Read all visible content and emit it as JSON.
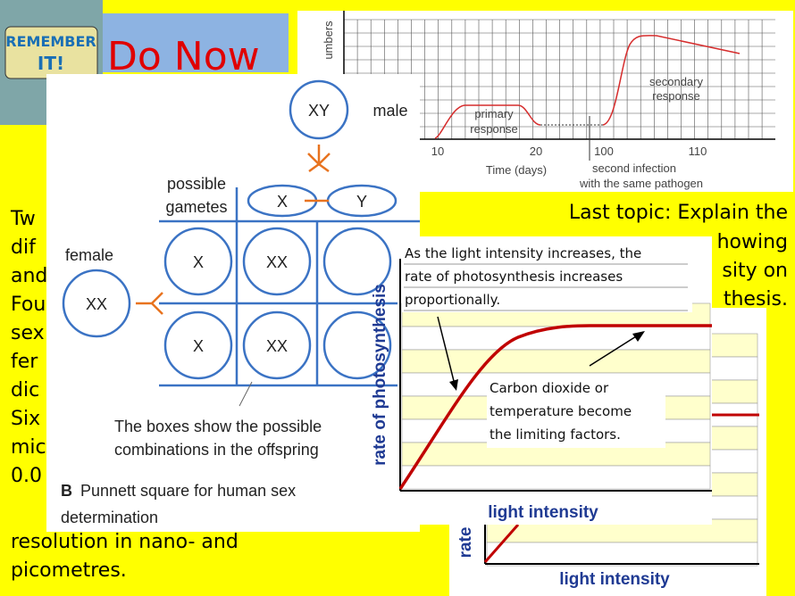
{
  "logo": {
    "line1": "REMEMBER",
    "line2": "IT!"
  },
  "header": {
    "title": "Do Now"
  },
  "left_text": {
    "lines": [
      "Tw",
      "dif",
      "and",
      "Fou",
      "sex",
      "fer",
      "dic",
      "Six",
      "mic",
      "0.0",
      "resolution in nano- and",
      "picometres."
    ]
  },
  "right_text": {
    "lines": [
      "Last topic: Explain the",
      "howing",
      "sity on",
      "thesis."
    ]
  },
  "immune_graph": {
    "y_label": "umbers",
    "x_ticks": [
      10,
      20,
      100,
      110
    ],
    "x_label": "Time (days)",
    "infection_note": [
      "second infection",
      "with the same pathogen"
    ],
    "primary_label": [
      "primary",
      "response"
    ],
    "secondary_label": [
      "secondary",
      "response"
    ]
  },
  "punnett": {
    "parent_male": "XY",
    "male_label": "male",
    "gametes_label": [
      "possible",
      "gametes"
    ],
    "gamete_1": "X",
    "gamete_2": "Y",
    "female_label": "female",
    "parent_female": "XX",
    "row_gametes": [
      "X",
      "X"
    ],
    "offspring": [
      "XX",
      "XX"
    ],
    "note": [
      "The boxes show the possible",
      "combinations in the offspring"
    ],
    "caption_letter": "B",
    "caption": [
      "Punnett square for human sex",
      "determination"
    ]
  },
  "photosynthesis_graph": {
    "box_text": [
      "As the light intensity increases, the",
      "rate of photosynthesis increases",
      "proportionally."
    ],
    "y_label": "rate of photosynthesis",
    "limit_text": [
      "Carbon dioxide or",
      "temperature become",
      "the limiting factors."
    ],
    "x_label": "light intensity"
  },
  "second_graph": {
    "y_label": "rate",
    "x_label": "light intensity"
  }
}
